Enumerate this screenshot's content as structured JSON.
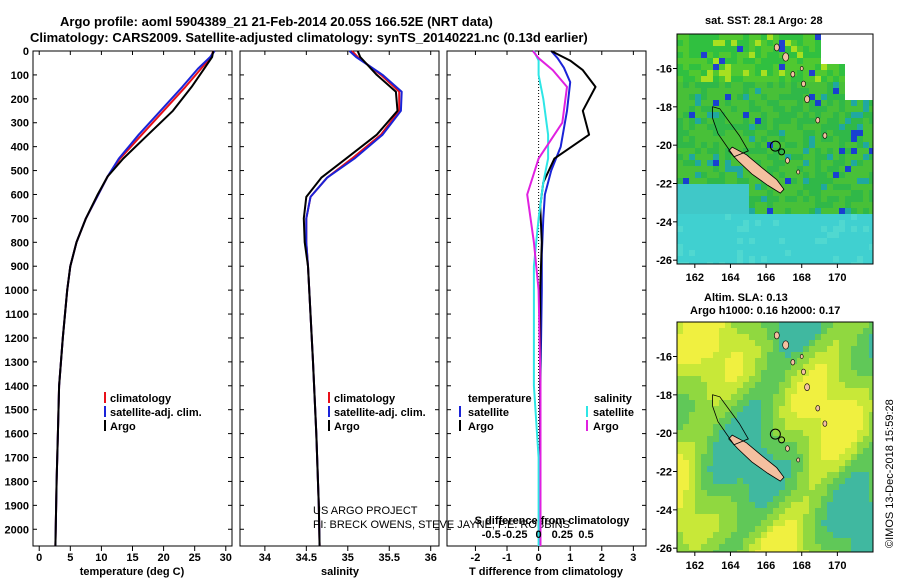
{
  "header": {
    "line1": "Argo profile: aoml 5904389_21 21-Feb-2014 20.05S 166.52E (NRT data)",
    "line2": "Climatology: CARS2009. Satellite-adjusted climatology: synTS_20140221.nc (0.13d earlier)"
  },
  "credits": {
    "project": "US ARGO PROJECT",
    "pi": "PI: BRECK OWENS, STEVE JAYNE, P.E. ROBBINS",
    "stamp": "©IMOS 13-Dec-2018 15:59:28"
  },
  "colors": {
    "climatology": "#e8101a",
    "satellite": "#1a23d8",
    "argo": "#000000",
    "sat_salinity": "#2ee6e6",
    "argo_salinity": "#e020e0",
    "land": "#f4c0a0"
  },
  "legends": {
    "profile": [
      "climatology",
      "satellite-adj. clim.",
      "Argo"
    ],
    "diff_temperature_header": "temperature",
    "diff_salinity_header": "salinity",
    "diff_items": [
      "satellite",
      "Argo"
    ]
  },
  "maps": {
    "sst_title": "sat. SST: 28.1 Argo: 28",
    "sla_title1": "Altim. SLA: 0.13",
    "sla_title2": "Argo h1000: 0.16 h2000: 0.17",
    "lon_ticks": [
      "162",
      "164",
      "166",
      "168",
      "170"
    ],
    "lon_values": [
      162,
      164,
      166,
      168,
      170
    ],
    "lat_ticks": [
      "-16",
      "-18",
      "-20",
      "-22",
      "-24",
      "-26"
    ],
    "lat_values": [
      -16,
      -18,
      -20,
      -22,
      -24,
      -26
    ],
    "lon_range": [
      161,
      172
    ],
    "lat_range": [
      -26.2,
      -14.2
    ],
    "argo_position": [
      166.52,
      -20.05
    ]
  },
  "chart_data": [
    {
      "type": "line",
      "name": "temperature",
      "xlabel": "temperature (deg C)",
      "ylabel": "",
      "xlim": [
        -1,
        31
      ],
      "ylim": [
        2070,
        0
      ],
      "xticks": [
        "0",
        "5",
        "10",
        "15",
        "20",
        "25",
        "30"
      ],
      "xtick_values": [
        0,
        5,
        10,
        15,
        20,
        25,
        30
      ],
      "yticks": [
        "0",
        "100",
        "200",
        "300",
        "400",
        "500",
        "600",
        "700",
        "800",
        "900",
        "1000",
        "1100",
        "1200",
        "1300",
        "1400",
        "1500",
        "1600",
        "1700",
        "1800",
        "1900",
        "2000"
      ],
      "ytick_values": [
        0,
        100,
        200,
        300,
        400,
        500,
        600,
        700,
        800,
        900,
        1000,
        1100,
        1200,
        1300,
        1400,
        1500,
        1600,
        1700,
        1800,
        1900,
        2000
      ],
      "series": [
        {
          "name": "climatology",
          "x": [
            28,
            27.6,
            26,
            23.5,
            20,
            16.5,
            13,
            11,
            9.5,
            7.5,
            6,
            5,
            4.5,
            3.8,
            3.2,
            3,
            2.8,
            2.6
          ],
          "y": [
            0,
            25,
            75,
            150,
            250,
            350,
            450,
            525,
            600,
            700,
            800,
            900,
            1000,
            1200,
            1400,
            1600,
            1800,
            2070
          ]
        },
        {
          "name": "satellite-adj. clim.",
          "x": [
            28.2,
            27.5,
            25.5,
            23,
            19.5,
            16,
            12.8,
            11,
            9.5,
            7.5,
            6,
            5,
            4.5,
            3.8,
            3.2,
            3,
            2.8,
            2.6
          ],
          "y": [
            0,
            25,
            75,
            150,
            250,
            350,
            450,
            525,
            600,
            700,
            800,
            900,
            1000,
            1200,
            1400,
            1600,
            1800,
            2070
          ]
        },
        {
          "name": "Argo",
          "x": [
            28,
            27.8,
            26.5,
            24.5,
            21.5,
            17.5,
            13.5,
            11,
            9.4,
            7.5,
            6,
            5,
            4.5,
            3.8,
            3.2,
            3,
            2.8,
            2.6
          ],
          "y": [
            0,
            25,
            75,
            150,
            250,
            350,
            450,
            525,
            600,
            700,
            800,
            900,
            1000,
            1200,
            1400,
            1600,
            1800,
            2070
          ]
        }
      ]
    },
    {
      "type": "line",
      "name": "salinity",
      "xlabel": "salinity",
      "ylabel": "",
      "xlim": [
        33.7,
        36.1
      ],
      "ylim": [
        2070,
        0
      ],
      "xticks": [
        "34",
        "34.5",
        "35",
        "35.5",
        "36"
      ],
      "xtick_values": [
        34,
        34.5,
        35,
        35.5,
        36
      ],
      "series": [
        {
          "name": "climatology",
          "x": [
            35.05,
            35.12,
            35.4,
            35.62,
            35.62,
            35.4,
            35.05,
            34.75,
            34.55,
            34.5,
            34.5,
            34.52,
            34.55,
            34.58,
            34.62,
            34.65,
            34.66
          ],
          "y": [
            0,
            25,
            100,
            170,
            250,
            350,
            450,
            530,
            610,
            700,
            800,
            900,
            1100,
            1300,
            1600,
            1900,
            2070
          ]
        },
        {
          "name": "satellite-adj. clim.",
          "x": [
            35.02,
            35.1,
            35.42,
            35.65,
            35.64,
            35.42,
            35.08,
            34.75,
            34.55,
            34.5,
            34.5,
            34.52,
            34.55,
            34.58,
            34.62,
            34.65,
            34.66
          ],
          "y": [
            0,
            25,
            100,
            170,
            250,
            350,
            450,
            530,
            610,
            700,
            800,
            900,
            1100,
            1300,
            1600,
            1900,
            2070
          ]
        },
        {
          "name": "Argo",
          "x": [
            35.12,
            35.15,
            35.35,
            35.58,
            35.6,
            35.35,
            34.98,
            34.68,
            34.5,
            34.47,
            34.48,
            34.52,
            34.55,
            34.58,
            34.62,
            34.65,
            34.66
          ],
          "y": [
            0,
            25,
            100,
            170,
            250,
            350,
            450,
            530,
            610,
            700,
            800,
            900,
            1100,
            1300,
            1600,
            1900,
            2070
          ]
        }
      ]
    },
    {
      "type": "line",
      "name": "difference",
      "title": "S difference from climatology",
      "xlabel": "T difference from climatology",
      "xlim": [
        -2.9,
        3.4
      ],
      "ylim": [
        2070,
        0
      ],
      "xticks": [
        "-2",
        "-1",
        "0",
        "1",
        "2",
        "3"
      ],
      "xtick_values": [
        -2,
        -1,
        0,
        1,
        2,
        3
      ],
      "sticks": [
        "-0.5",
        "-0.25",
        "0",
        "0.25",
        "0.5"
      ],
      "stick_values": [
        -0.5,
        -0.25,
        0,
        0.25,
        0.5
      ],
      "s_scale": 3.0,
      "series": [
        {
          "name": "temperature satellite",
          "x": [
            0.4,
            0.6,
            0.8,
            1.0,
            0.9,
            0.7,
            0.4,
            0.2,
            0.15,
            0.1,
            0.1,
            0.08,
            0.05,
            0.05,
            0.05,
            0.05
          ],
          "y": [
            0,
            30,
            70,
            130,
            250,
            400,
            500,
            600,
            700,
            850,
            1000,
            1200,
            1400,
            1600,
            1800,
            2070
          ]
        },
        {
          "name": "temperature Argo",
          "x": [
            0.4,
            1.0,
            1.4,
            1.8,
            1.4,
            1.6,
            0.5,
            0.15,
            0.05,
            0.1,
            0.05,
            0.05,
            0.05,
            0.05,
            0.05,
            0.05
          ],
          "y": [
            0,
            40,
            80,
            150,
            250,
            350,
            450,
            550,
            650,
            800,
            1000,
            1200,
            1400,
            1600,
            1800,
            2070
          ]
        },
        {
          "name": "salinity satellite",
          "x": [
            -0.05,
            0.0,
            0.0,
            0.05,
            0.1,
            0.1,
            0.05,
            0.0,
            -0.05,
            -0.05,
            -0.05,
            0.0,
            0.0
          ],
          "y": [
            0,
            40,
            100,
            200,
            350,
            450,
            550,
            700,
            900,
            1100,
            1400,
            1700,
            2070
          ]
        },
        {
          "name": "salinity Argo",
          "x": [
            -0.06,
            0.0,
            0.15,
            0.3,
            0.25,
            0.0,
            -0.12,
            -0.05,
            0.0,
            0.02,
            0.02
          ],
          "y": [
            0,
            30,
            80,
            150,
            300,
            450,
            600,
            800,
            1000,
            1400,
            2070
          ]
        }
      ]
    }
  ]
}
